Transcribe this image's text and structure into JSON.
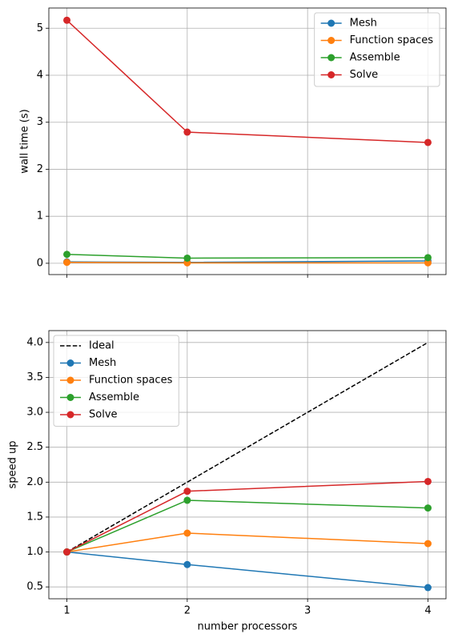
{
  "chart_data": [
    {
      "type": "line",
      "ylabel": "wall time (s)",
      "x": [
        1,
        2,
        4
      ],
      "xlim": [
        0.85,
        4.15
      ],
      "ylim": [
        -0.24,
        5.43
      ],
      "yticks": [
        0,
        1,
        2,
        3,
        4,
        5
      ],
      "grid": true,
      "legend": "upper right",
      "series": [
        {
          "name": "Mesh",
          "color": "#1f77b4",
          "marker": "o",
          "values": [
            0.03,
            0.02,
            0.05
          ]
        },
        {
          "name": "Function spaces",
          "color": "#ff7f0e",
          "marker": "o",
          "values": [
            0.02,
            0.01,
            0.01
          ]
        },
        {
          "name": "Assemble",
          "color": "#2ca02c",
          "marker": "o",
          "values": [
            0.19,
            0.11,
            0.12
          ]
        },
        {
          "name": "Solve",
          "color": "#d62728",
          "marker": "o",
          "values": [
            5.17,
            2.79,
            2.57
          ]
        }
      ]
    },
    {
      "type": "line",
      "ylabel": "speed up",
      "xlabel": "number processors",
      "x": [
        1,
        2,
        4
      ],
      "xlim": [
        0.85,
        4.15
      ],
      "xticks": [
        1,
        2,
        3,
        4
      ],
      "ylim": [
        0.33,
        4.17
      ],
      "yticks": [
        {
          "value": 0.5,
          "label": "0.5"
        },
        {
          "value": 1,
          "label": "1.0"
        },
        {
          "value": 1.5,
          "label": "1.5"
        },
        {
          "value": 2,
          "label": "2.0"
        },
        {
          "value": 2.5,
          "label": "2.5"
        },
        {
          "value": 3,
          "label": "3.0"
        },
        {
          "value": 3.5,
          "label": "3.5"
        },
        {
          "value": 4,
          "label": "4.0"
        }
      ],
      "grid": true,
      "legend": "upper left",
      "series": [
        {
          "name": "Ideal",
          "color": "#000000",
          "linestyle": "dashed",
          "values": [
            1,
            2,
            4
          ]
        },
        {
          "name": "Mesh",
          "color": "#1f77b4",
          "marker": "o",
          "values": [
            1,
            0.82,
            0.49
          ]
        },
        {
          "name": "Function spaces",
          "color": "#ff7f0e",
          "marker": "o",
          "values": [
            1,
            1.27,
            1.12
          ]
        },
        {
          "name": "Assemble",
          "color": "#2ca02c",
          "marker": "o",
          "values": [
            1,
            1.74,
            1.63
          ]
        },
        {
          "name": "Solve",
          "color": "#d62728",
          "marker": "o",
          "values": [
            1,
            1.87,
            2.01
          ]
        }
      ]
    }
  ]
}
